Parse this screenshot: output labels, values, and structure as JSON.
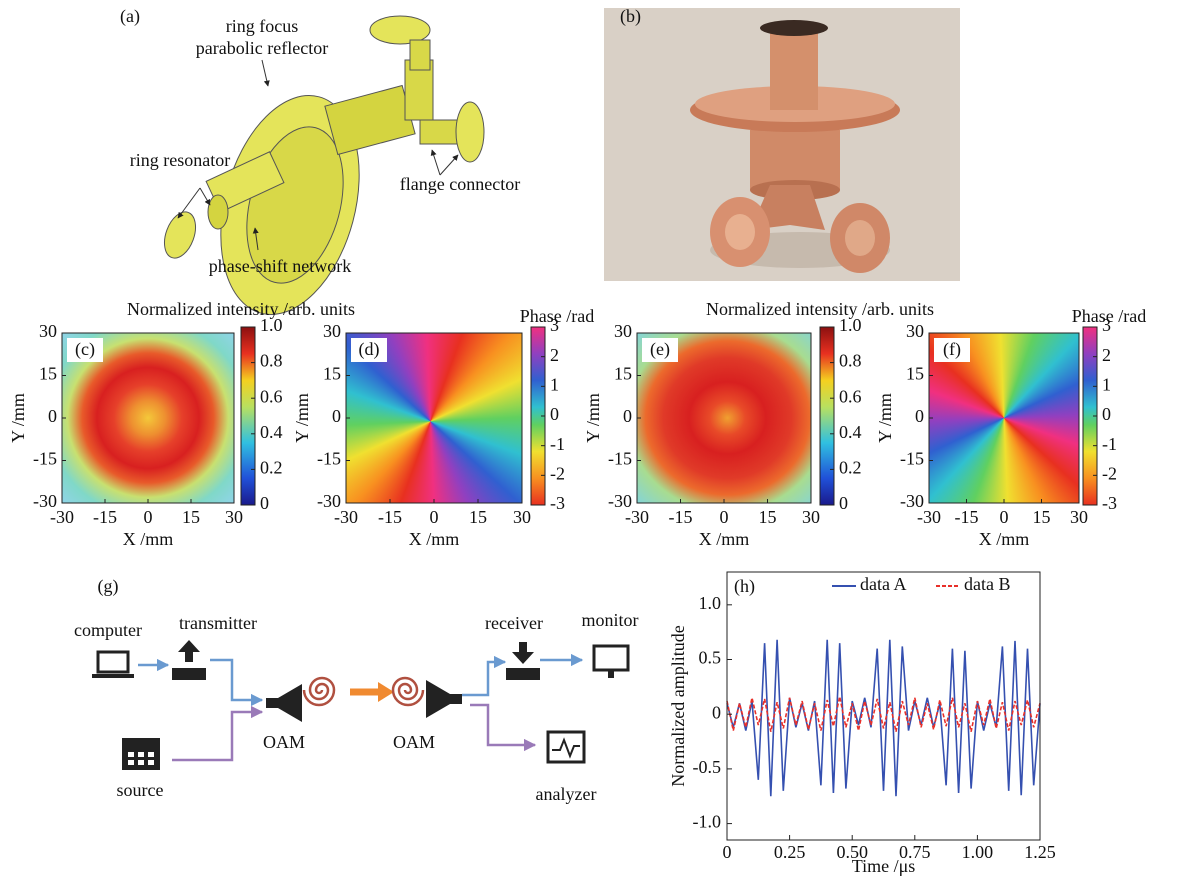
{
  "panel_a": {
    "label": "(a)",
    "annotations": [
      "ring focus",
      "parabolic reflector",
      "ring resonator",
      "flange connector",
      "phase-shift network"
    ]
  },
  "panel_b": {
    "label": "(b)"
  },
  "heatmaps": [
    {
      "label": "(c)",
      "kind": "intensity",
      "title": "Normalized intensity /arb. units",
      "xlabel": "X /mm",
      "ylabel": "Y /mm",
      "xlim": [
        -30,
        30
      ],
      "ylim": [
        -30,
        30
      ],
      "xticks": [
        -30,
        -15,
        0,
        15,
        30
      ],
      "yticks": [
        -30,
        -15,
        0,
        15,
        30
      ],
      "colorbar_lim": [
        0,
        1
      ],
      "colorbar_ticks": [
        0,
        0.2,
        0.4,
        0.6,
        0.8,
        {
          "value": 1,
          "label": "1.0"
        }
      ]
    },
    {
      "label": "(d)",
      "kind": "phase",
      "title": "Phase /rad",
      "xlabel": "X /mm",
      "ylabel": "Y /mm",
      "xlim": [
        -30,
        30
      ],
      "ylim": [
        -30,
        30
      ],
      "xticks": [
        -30,
        -15,
        0,
        15,
        30
      ],
      "yticks": [
        -30,
        -15,
        0,
        15,
        30
      ],
      "colorbar_lim": [
        -3,
        3
      ],
      "colorbar_ticks": [
        -3,
        -2,
        -1,
        0,
        1,
        2,
        3
      ]
    },
    {
      "label": "(e)",
      "kind": "intensity",
      "title": "Normalized intensity /arb. units",
      "xlabel": "X /mm",
      "ylabel": "Y /mm",
      "xlim": [
        -30,
        30
      ],
      "ylim": [
        -30,
        30
      ],
      "xticks": [
        -30,
        -15,
        0,
        15,
        30
      ],
      "yticks": [
        -30,
        -15,
        0,
        15,
        30
      ],
      "colorbar_lim": [
        0,
        1
      ],
      "colorbar_ticks": [
        0,
        0.2,
        0.4,
        0.6,
        0.8,
        {
          "value": 1,
          "label": "1.0"
        }
      ]
    },
    {
      "label": "(f)",
      "kind": "phase",
      "title": "Phase /rad",
      "xlabel": "X /mm",
      "ylabel": "Y /mm",
      "xlim": [
        -30,
        30
      ],
      "ylim": [
        -30,
        30
      ],
      "xticks": [
        -30,
        -15,
        0,
        15,
        30
      ],
      "yticks": [
        -30,
        -15,
        0,
        15,
        30
      ],
      "colorbar_lim": [
        -3,
        3
      ],
      "colorbar_ticks": [
        -3,
        -2,
        -1,
        0,
        1,
        2,
        3
      ]
    }
  ],
  "panel_g": {
    "label": "(g)",
    "nodes": [
      "computer",
      "transmitter",
      "source",
      "OAM",
      "OAM",
      "receiver",
      "monitor",
      "analyzer"
    ]
  },
  "chart_data": {
    "type": "line",
    "label": "(h)",
    "xlabel": "Time /μs",
    "ylabel": "Normalized amplitude",
    "xlim": [
      0,
      1.25
    ],
    "ylim": [
      -1.15,
      1.3
    ],
    "xticks": [
      0,
      0.25,
      {
        "value": 0.5,
        "label": "0.50"
      },
      0.75,
      {
        "value": 1,
        "label": "1.00"
      },
      1.25
    ],
    "yticks": [
      {
        "value": -1,
        "label": "-1.0"
      },
      -0.5,
      0,
      0.5,
      {
        "value": 1,
        "label": "1.0"
      }
    ],
    "legend": "upper right",
    "x": [
      0,
      0.025,
      0.05,
      0.075,
      0.1,
      0.125,
      0.15,
      0.175,
      0.2,
      0.225,
      0.25,
      0.275,
      0.3,
      0.325,
      0.35,
      0.375,
      0.4,
      0.425,
      0.45,
      0.475,
      0.5,
      0.525,
      0.55,
      0.575,
      0.6,
      0.625,
      0.65,
      0.675,
      0.7,
      0.725,
      0.75,
      0.775,
      0.8,
      0.825,
      0.85,
      0.875,
      0.9,
      0.925,
      0.95,
      0.975,
      1,
      1.025,
      1.05,
      1.075,
      1.1,
      1.125,
      1.15,
      1.175,
      1.2,
      1.225,
      1.25
    ],
    "series": [
      {
        "name": "data A",
        "color": "#3550b0",
        "dash": false,
        "values": [
          0.1,
          -0.12,
          0.1,
          -0.15,
          0.12,
          -0.6,
          0.65,
          -0.75,
          0.68,
          -0.7,
          0.15,
          -0.12,
          0.1,
          -0.15,
          0.12,
          -0.65,
          0.68,
          -0.72,
          0.65,
          -0.68,
          0.12,
          -0.1,
          0.15,
          -0.12,
          0.6,
          -0.7,
          0.68,
          -0.75,
          0.62,
          -0.15,
          0.12,
          -0.1,
          0.15,
          -0.12,
          0.1,
          -0.65,
          0.6,
          -0.72,
          0.58,
          -0.68,
          0.12,
          -0.15,
          0.1,
          -0.12,
          0.62,
          -0.7,
          0.67,
          -0.74,
          0.6,
          -0.65,
          0.1
        ]
      },
      {
        "name": "data B",
        "color": "#e8302a",
        "dash": true,
        "values": [
          0.12,
          -0.15,
          0.1,
          -0.12,
          0.15,
          -0.1,
          0.14,
          -0.16,
          0.11,
          -0.13,
          0.15,
          -0.1,
          0.12,
          -0.14,
          0.1,
          -0.15,
          0.13,
          -0.11,
          0.16,
          -0.12,
          0.1,
          -0.15,
          0.12,
          -0.1,
          0.14,
          -0.13,
          0.11,
          -0.16,
          0.12,
          -0.1,
          0.15,
          -0.12,
          0.1,
          -0.14,
          0.13,
          -0.11,
          0.15,
          -0.12,
          0.1,
          -0.16,
          0.12,
          -0.1,
          0.14,
          -0.13,
          0.11,
          -0.15,
          0.12,
          -0.1,
          0.13,
          -0.12,
          0.1
        ]
      }
    ]
  }
}
